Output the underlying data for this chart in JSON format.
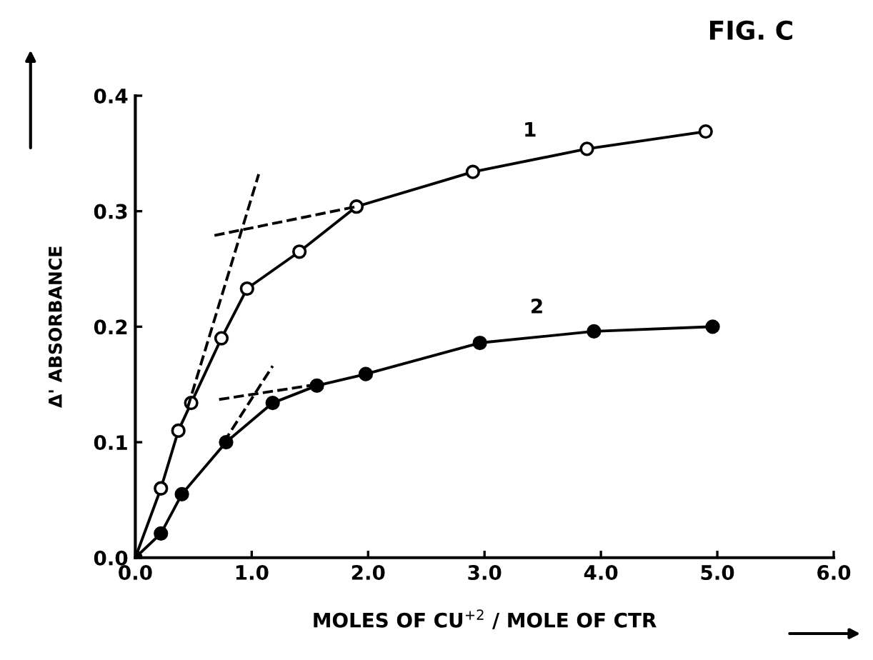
{
  "chart_data": {
    "type": "line",
    "title": "FIG. C",
    "xlabel": "MOLES OF CU$^{+2}$ / MOLE OF CTR",
    "ylabel": "Δ' ABSORBANCE",
    "xlim": [
      0,
      6.0
    ],
    "ylim": [
      0,
      0.4
    ],
    "xticks": [
      {
        "value": 0,
        "label": "0.0"
      },
      {
        "value": 1,
        "label": "1.0"
      },
      {
        "value": 2,
        "label": "2.0"
      },
      {
        "value": 3,
        "label": "3.0"
      },
      {
        "value": 4,
        "label": "4.0"
      },
      {
        "value": 5,
        "label": "5.0"
      },
      {
        "value": 6,
        "label": "6.0"
      }
    ],
    "yticks": [
      {
        "value": 0,
        "label": "0.0"
      },
      {
        "value": 0.1,
        "label": "0.1"
      },
      {
        "value": 0.2,
        "label": "0.2"
      },
      {
        "value": 0.3,
        "label": "0.3"
      },
      {
        "value": 0.4,
        "label": "0.4"
      }
    ],
    "grid": false,
    "legend": false,
    "marker": "circle",
    "line_style": "solid",
    "series": [
      {
        "name": "1",
        "color": "#000000",
        "x": [
          0,
          0.22,
          0.37,
          0.48,
          0.74,
          0.96,
          1.41,
          1.9,
          2.9,
          3.88,
          4.9
        ],
        "values": [
          0,
          0.06,
          0.11,
          0.134,
          0.19,
          0.233,
          0.265,
          0.304,
          0.334,
          0.354,
          0.369
        ]
      },
      {
        "name": "2",
        "color": "#000000",
        "x": [
          0,
          0.22,
          0.4,
          0.78,
          1.18,
          1.56,
          1.98,
          2.96,
          3.94,
          4.96
        ],
        "values": [
          0,
          0.021,
          0.055,
          0.1,
          0.134,
          0.149,
          0.159,
          0.186,
          0.196,
          0.2
        ]
      },
      {
        "color": "#000000",
        "marker": "none",
        "line_style": "dashed",
        "x": [
          0.45,
          1.06
        ],
        "values": [
          0.13,
          0.332
        ]
      },
      {
        "color": "#000000",
        "marker": "none",
        "line_style": "dashed",
        "x": [
          0.68,
          1.9
        ],
        "values": [
          0.279,
          0.304
        ]
      },
      {
        "color": "#000000",
        "marker": "none",
        "line_style": "dashed",
        "x": [
          0.76,
          1.18
        ],
        "values": [
          0.1,
          0.166
        ]
      },
      {
        "color": "#000000",
        "marker": "none",
        "line_style": "dashed",
        "x": [
          0.72,
          1.56
        ],
        "values": [
          0.137,
          0.15
        ]
      }
    ]
  }
}
